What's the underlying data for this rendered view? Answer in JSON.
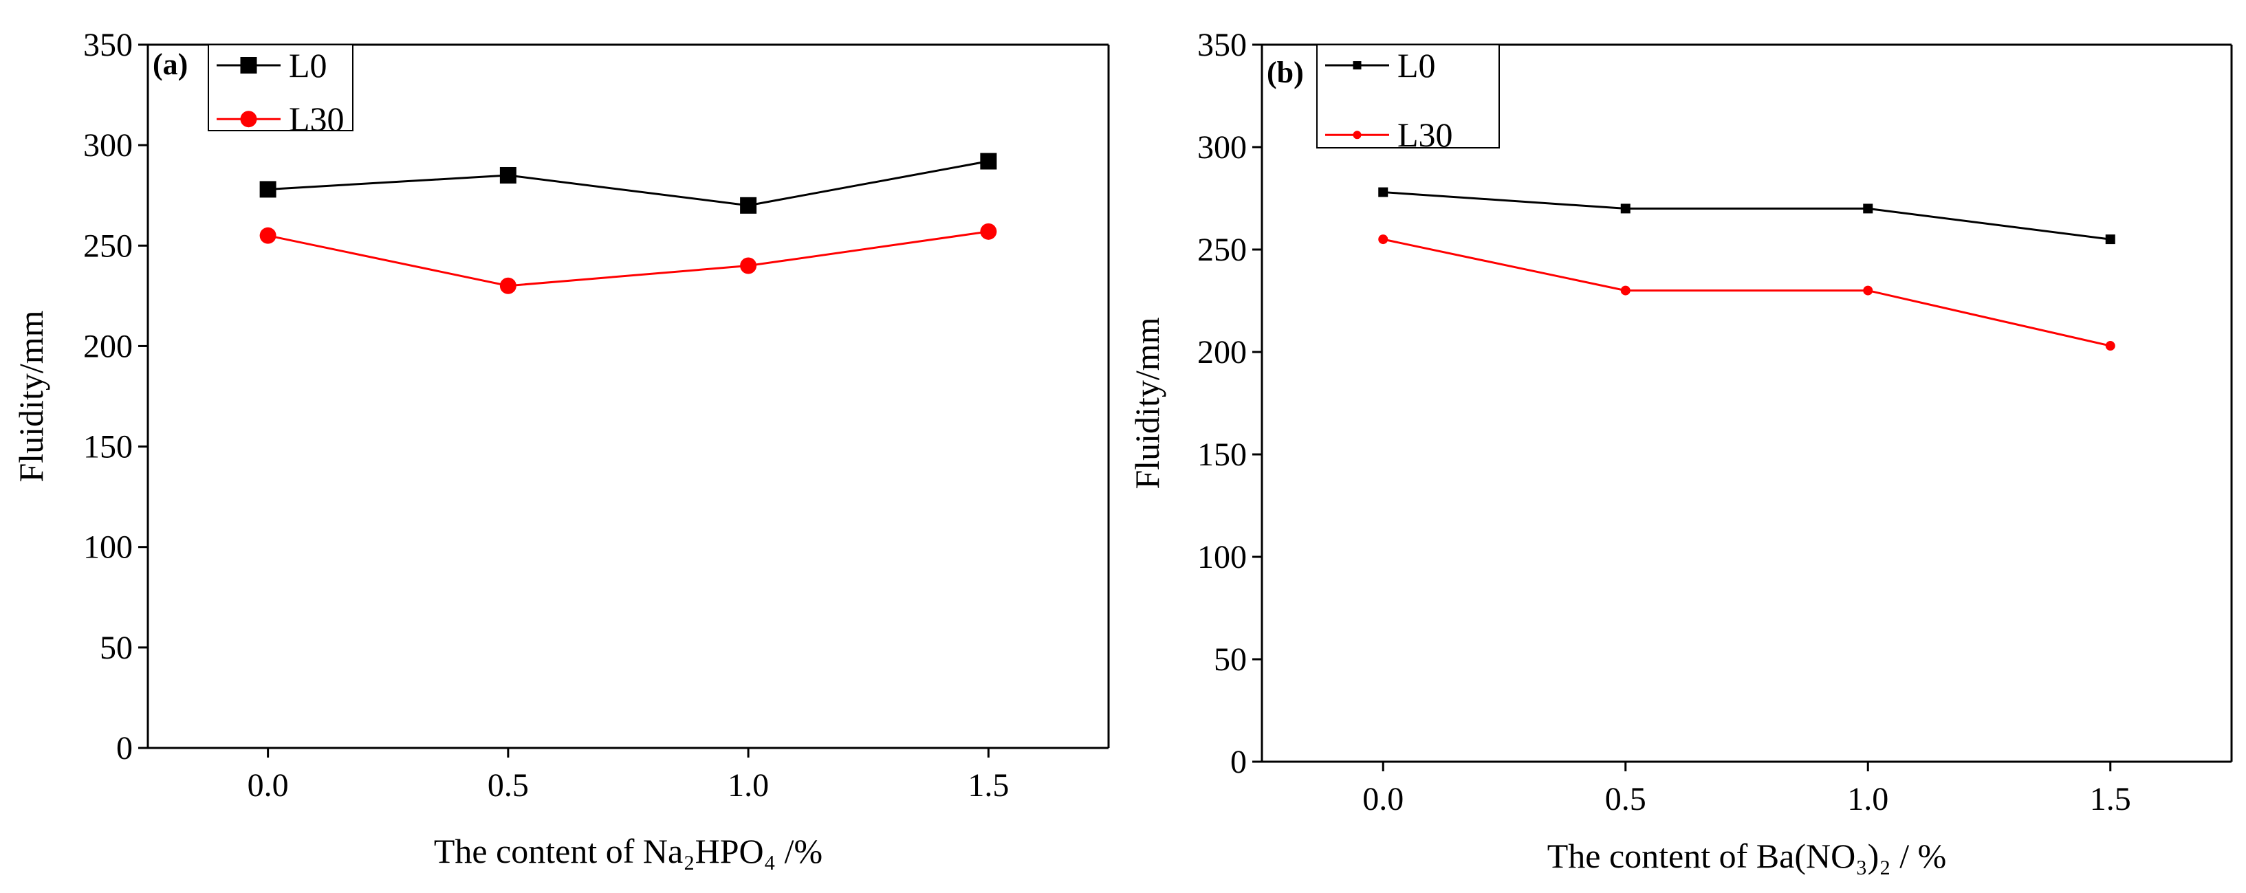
{
  "chart_data": [
    {
      "type": "line",
      "panel_label": "(a)",
      "x": [
        0.0,
        0.5,
        1.0,
        1.5
      ],
      "xticks": [
        "0.0",
        "0.5",
        "1.0",
        "1.5"
      ],
      "xlim": [
        -0.25,
        1.75
      ],
      "ylim": [
        0,
        350
      ],
      "yticks": [
        "0",
        "50",
        "100",
        "150",
        "200",
        "250",
        "300",
        "350"
      ],
      "xlabel": "The content of Na₂HPO₄ /%",
      "ylabel": "Fluidity/mm",
      "legend_position": "top-left",
      "grid": false,
      "series": [
        {
          "name": "L0",
          "values": [
            278,
            285,
            270,
            292
          ],
          "color": "#000000",
          "marker": "square"
        },
        {
          "name": "L30",
          "values": [
            255,
            230,
            240,
            257
          ],
          "color": "#ff0000",
          "marker": "circle"
        }
      ]
    },
    {
      "type": "line",
      "panel_label": "(b)",
      "x": [
        0.0,
        0.5,
        1.0,
        1.5
      ],
      "xticks": [
        "0.0",
        "0.5",
        "1.0",
        "1.5"
      ],
      "xlim": [
        -0.25,
        1.75
      ],
      "ylim": [
        0,
        350
      ],
      "yticks": [
        "0",
        "50",
        "100",
        "150",
        "200",
        "250",
        "300",
        "350"
      ],
      "xlabel": "The content of Ba(NO₃)₂ / %",
      "ylabel": "Fluidity/mm",
      "legend_position": "top-left",
      "grid": false,
      "series": [
        {
          "name": "L0",
          "values": [
            278,
            270,
            270,
            255
          ],
          "color": "#000000",
          "marker": "square"
        },
        {
          "name": "L30",
          "values": [
            255,
            230,
            230,
            203
          ],
          "color": "#ff0000",
          "marker": "circle"
        }
      ]
    }
  ]
}
